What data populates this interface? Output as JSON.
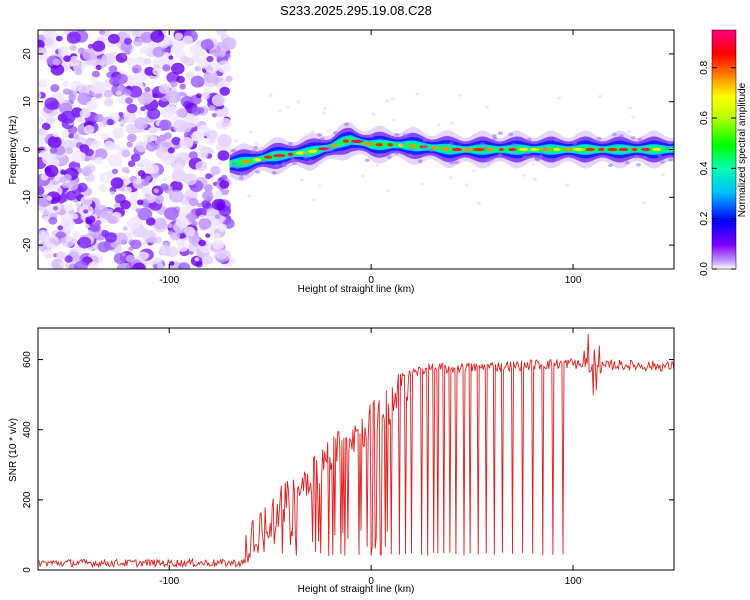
{
  "title": "S233.2025.295.19.08.C28",
  "chart_data": [
    {
      "type": "heatmap",
      "title": "S233.2025.295.19.08.C28",
      "xlabel": "Height of straight line (km)",
      "ylabel": "Frequency (Hz)",
      "xlim": [
        -165,
        150
      ],
      "ylim": [
        -25,
        25
      ],
      "xticks": [
        -100,
        0,
        100
      ],
      "yticks": [
        -20,
        -10,
        0,
        10,
        20
      ],
      "noise_region_x": [
        -165,
        -70
      ],
      "signal_start_x": -70,
      "ridge": {
        "x": [
          -70,
          -60,
          -50,
          -40,
          -30,
          -20,
          -15,
          -10,
          -5,
          0,
          10,
          20,
          40,
          60,
          80,
          100,
          120,
          150
        ],
        "freq": [
          -3,
          -2.5,
          -1.5,
          -1,
          -0.5,
          0.5,
          1.5,
          2,
          1.5,
          1,
          1,
          0.8,
          0,
          0,
          0,
          0,
          0,
          0
        ]
      },
      "colorbar": {
        "label": "Normalized spectral amplitude",
        "range": [
          0,
          0.95
        ],
        "ticks": [
          0.0,
          0.2,
          0.4,
          0.6,
          0.8
        ],
        "tick_labels": [
          "0.0",
          "0.2",
          "0.4",
          "0.6",
          "0.8"
        ],
        "colormap": [
          "#ffffff",
          "#8000ff",
          "#0000ff",
          "#00e0e0",
          "#00ff00",
          "#ffff00",
          "#ff8000",
          "#ff0000",
          "#ff0080"
        ]
      }
    },
    {
      "type": "line",
      "xlabel": "Height of straight line (km)",
      "ylabel": "SNR (10 * v/v)",
      "xlim": [
        -165,
        150
      ],
      "ylim": [
        0,
        690
      ],
      "xticks": [
        -100,
        0,
        100
      ],
      "yticks": [
        0,
        200,
        400,
        600
      ],
      "color": "#e02020",
      "profile": {
        "x": [
          -165,
          -62,
          -60,
          -50,
          -40,
          -30,
          -20,
          -10,
          0,
          10,
          20,
          25,
          30,
          40,
          60,
          80,
          100,
          110,
          120,
          150
        ],
        "snr": [
          20,
          20,
          80,
          150,
          210,
          270,
          330,
          380,
          420,
          470,
          560,
          570,
          575,
          575,
          580,
          585,
          590,
          575,
          585,
          580
        ]
      },
      "noise_level": 20,
      "dropouts": [
        -25,
        -19,
        -13,
        -6,
        0,
        5,
        10,
        14,
        20,
        25,
        28,
        31,
        33,
        36,
        39,
        42,
        46,
        49,
        53,
        57,
        61,
        65,
        70,
        75,
        80,
        85,
        90,
        95
      ],
      "dropout_floor": 40
    }
  ]
}
